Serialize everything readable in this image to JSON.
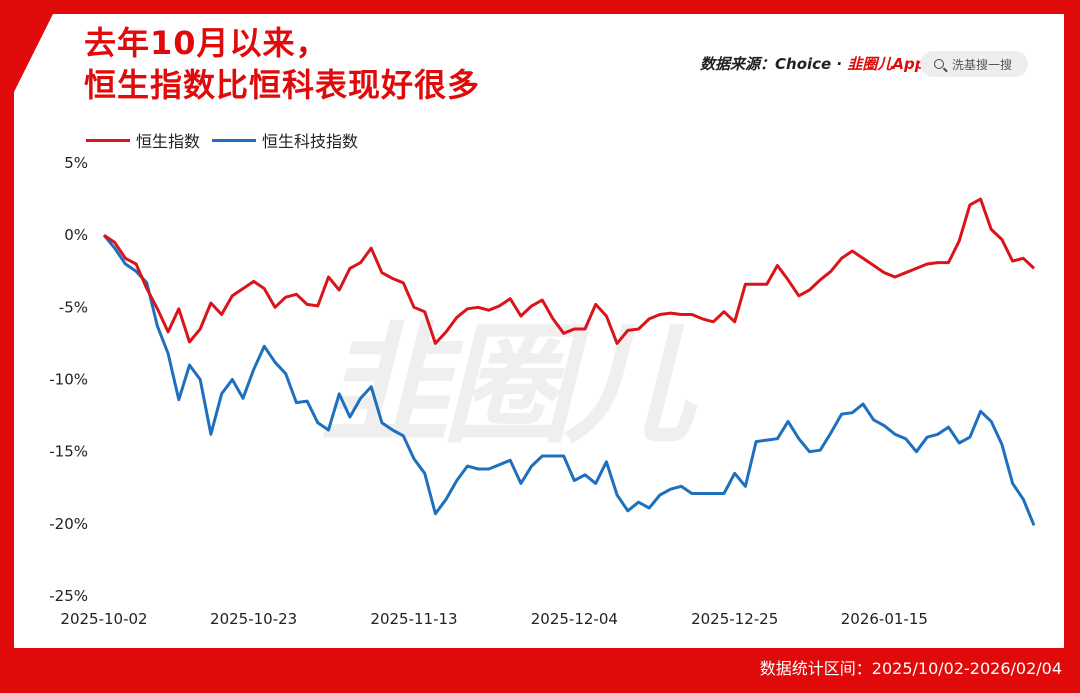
{
  "header": {
    "title_line1": "去年10月以来，",
    "title_line2": "恒生指数比恒科表现好很多",
    "source_prefix": "数据来源：Choice · ",
    "source_brand": "韭圈儿App",
    "search_placeholder": "洗基搜一搜"
  },
  "watermark": "韭圈儿",
  "footer": {
    "date_range": "数据统计区间：2025/10/02-2026/02/04"
  },
  "colors": {
    "hsi": "#d9151a",
    "hstech": "#1f6fbf",
    "accent": "#e00a0a"
  },
  "chart_data": {
    "type": "line",
    "title": "去年10月以来，恒生指数比恒科表现好很多",
    "ylabel": "",
    "xlabel": "",
    "ylim": [
      -25,
      5
    ],
    "yticks": [
      5,
      0,
      -5,
      -10,
      -15,
      -20,
      -25
    ],
    "ytick_labels": [
      "5%",
      "0%",
      "-5%",
      "-10%",
      "-15%",
      "-20%",
      "-25%"
    ],
    "xtick_labels": [
      "2025-10-02",
      "2025-10-23",
      "2025-11-13",
      "2025-12-04",
      "2025-12-25",
      "2026-01-15"
    ],
    "x": [
      "2025-10-02",
      "2025-10-03",
      "2025-10-06",
      "2025-10-08",
      "2025-10-09",
      "2025-10-10",
      "2025-10-13",
      "2025-10-14",
      "2025-10-15",
      "2025-10-16",
      "2025-10-17",
      "2025-10-20",
      "2025-10-21",
      "2025-10-22",
      "2025-10-23",
      "2025-10-24",
      "2025-10-27",
      "2025-10-28",
      "2025-10-29",
      "2025-10-30",
      "2025-10-31",
      "2025-11-03",
      "2025-11-04",
      "2025-11-05",
      "2025-11-06",
      "2025-11-07",
      "2025-11-10",
      "2025-11-11",
      "2025-11-12",
      "2025-11-13",
      "2025-11-14",
      "2025-11-17",
      "2025-11-18",
      "2025-11-19",
      "2025-11-20",
      "2025-11-21",
      "2025-11-24",
      "2025-11-25",
      "2025-11-26",
      "2025-11-27",
      "2025-11-28",
      "2025-12-01",
      "2025-12-02",
      "2025-12-03",
      "2025-12-04",
      "2025-12-05",
      "2025-12-08",
      "2025-12-09",
      "2025-12-10",
      "2025-12-11",
      "2025-12-12",
      "2025-12-15",
      "2025-12-16",
      "2025-12-17",
      "2025-12-18",
      "2025-12-19",
      "2025-12-22",
      "2025-12-23",
      "2025-12-24",
      "2025-12-25",
      "2025-12-26",
      "2025-12-29",
      "2025-12-30",
      "2025-12-31",
      "2026-01-02",
      "2026-01-05",
      "2026-01-06",
      "2026-01-07",
      "2026-01-08",
      "2026-01-09",
      "2026-01-12",
      "2026-01-13",
      "2026-01-14",
      "2026-01-15",
      "2026-01-16",
      "2026-01-19",
      "2026-01-20",
      "2026-01-21",
      "2026-01-22",
      "2026-01-23",
      "2026-01-26",
      "2026-01-27",
      "2026-01-28",
      "2026-01-29",
      "2026-01-30",
      "2026-02-02",
      "2026-02-03",
      "2026-02-04"
    ],
    "series": [
      {
        "name": "恒生指数",
        "values": [
          0.0,
          -0.5,
          -1.6,
          -2.0,
          -3.7,
          -5.1,
          -6.7,
          -5.1,
          -7.4,
          -6.5,
          -4.7,
          -5.5,
          -4.2,
          -3.7,
          -3.2,
          -3.7,
          -5.0,
          -4.3,
          -4.1,
          -4.8,
          -4.9,
          -2.9,
          -3.8,
          -2.3,
          -1.9,
          -0.9,
          -2.6,
          -3.0,
          -3.3,
          -5.0,
          -5.3,
          -7.5,
          -6.7,
          -5.7,
          -5.1,
          -5.0,
          -5.2,
          -4.9,
          -4.4,
          -5.6,
          -4.9,
          -4.5,
          -5.8,
          -6.8,
          -6.5,
          -6.5,
          -4.8,
          -5.6,
          -7.5,
          -6.6,
          -6.5,
          -5.8,
          -5.5,
          -5.4,
          -5.5,
          -5.5,
          -5.8,
          -6.0,
          -5.3,
          -6.0,
          -3.4,
          -3.4,
          -3.4,
          -2.1,
          -3.1,
          -4.2,
          -3.8,
          -3.1,
          -2.5,
          -1.6,
          -1.1,
          -1.6,
          -2.1,
          -2.6,
          -2.9,
          -2.6,
          -2.3,
          -2.0,
          -1.9,
          -1.9,
          -0.4,
          2.1,
          2.5,
          0.4,
          -0.3,
          -1.8,
          -1.6,
          -2.3
        ]
      },
      {
        "name": "恒生科技指数",
        "values": [
          0.0,
          -0.9,
          -2.0,
          -2.5,
          -3.3,
          -6.3,
          -8.2,
          -11.4,
          -9.0,
          -10.0,
          -13.8,
          -11.0,
          -10.0,
          -11.3,
          -9.3,
          -7.7,
          -8.8,
          -9.6,
          -11.6,
          -11.5,
          -13.0,
          -13.5,
          -11.0,
          -12.6,
          -11.3,
          -10.5,
          -13.0,
          -13.5,
          -13.9,
          -15.5,
          -16.5,
          -19.3,
          -18.3,
          -17.0,
          -16.0,
          -16.2,
          -16.2,
          -15.9,
          -15.6,
          -17.2,
          -16.0,
          -15.3,
          -15.3,
          -15.3,
          -17.0,
          -16.6,
          -17.2,
          -15.7,
          -18.0,
          -19.1,
          -18.5,
          -18.9,
          -18.0,
          -17.6,
          -17.4,
          -17.9,
          -17.9,
          -17.9,
          -17.9,
          -16.5,
          -17.4,
          -14.3,
          -14.2,
          -14.1,
          -12.9,
          -14.1,
          -15.0,
          -14.9,
          -13.7,
          -12.4,
          -12.3,
          -11.7,
          -12.8,
          -13.2,
          -13.8,
          -14.1,
          -15.0,
          -14.0,
          -13.8,
          -13.3,
          -14.4,
          -14.0,
          -12.2,
          -12.9,
          -14.5,
          -17.2,
          -18.3,
          -20.1
        ]
      }
    ],
    "legend_position": "top-left",
    "grid": false
  }
}
